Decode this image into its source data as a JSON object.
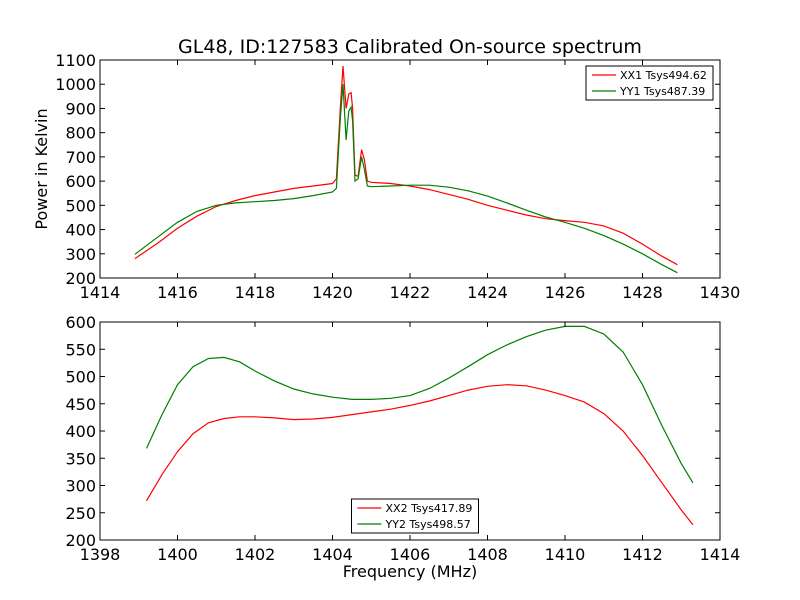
{
  "figure": {
    "title": "GL48, ID:127583 Calibrated On-source spectrum",
    "top_ylabel": "Power in Kelvin",
    "bottom_xlabel": "Frequency (MHz)"
  },
  "chart_data": [
    {
      "type": "line",
      "title": "GL48, ID:127583 Calibrated On-source spectrum",
      "xlabel": "",
      "ylabel": "Power in Kelvin",
      "xlim": [
        1414,
        1430
      ],
      "ylim": [
        200,
        1100
      ],
      "xticks": [
        1414,
        1416,
        1418,
        1420,
        1422,
        1424,
        1426,
        1428,
        1430
      ],
      "yticks": [
        200,
        300,
        400,
        500,
        600,
        700,
        800,
        900,
        1000,
        1100
      ],
      "grid": false,
      "legend": "top-right",
      "series": [
        {
          "name": "XX1 Tsys494.62",
          "color": "#ff0000",
          "x": [
            1414.9,
            1415.5,
            1416,
            1416.5,
            1417,
            1417.5,
            1418,
            1418.5,
            1419,
            1419.5,
            1420,
            1420.1,
            1420.2,
            1420.27,
            1420.35,
            1420.42,
            1420.48,
            1420.52,
            1420.58,
            1420.66,
            1420.75,
            1420.82,
            1420.9,
            1421,
            1421.5,
            1422,
            1422.5,
            1423,
            1423.5,
            1424,
            1424.5,
            1425,
            1425.5,
            1426,
            1426.5,
            1427,
            1427.5,
            1428,
            1428.5,
            1428.9
          ],
          "y": [
            280,
            345,
            405,
            455,
            495,
            520,
            540,
            555,
            570,
            580,
            590,
            610,
            900,
            1075,
            900,
            960,
            965,
            900,
            625,
            620,
            730,
            690,
            600,
            595,
            590,
            580,
            565,
            545,
            525,
            500,
            480,
            460,
            445,
            437,
            430,
            415,
            385,
            340,
            290,
            255
          ]
        },
        {
          "name": "YY1 Tsys487.39",
          "color": "#008000",
          "x": [
            1414.9,
            1415.5,
            1416,
            1416.5,
            1417,
            1417.5,
            1418,
            1418.5,
            1419,
            1419.5,
            1420,
            1420.1,
            1420.2,
            1420.27,
            1420.35,
            1420.42,
            1420.48,
            1420.52,
            1420.58,
            1420.66,
            1420.75,
            1420.82,
            1420.9,
            1421,
            1421.5,
            1422,
            1422.5,
            1423,
            1423.5,
            1424,
            1424.5,
            1425,
            1425.5,
            1426,
            1426.5,
            1427,
            1427.5,
            1428,
            1428.5,
            1428.9
          ],
          "y": [
            298,
            370,
            430,
            475,
            500,
            510,
            515,
            520,
            528,
            540,
            555,
            570,
            860,
            1000,
            770,
            890,
            905,
            850,
            600,
            610,
            700,
            650,
            580,
            577,
            580,
            583,
            583,
            575,
            560,
            538,
            510,
            480,
            452,
            430,
            405,
            375,
            340,
            300,
            255,
            222
          ]
        }
      ]
    },
    {
      "type": "line",
      "title": "",
      "xlabel": "Frequency (MHz)",
      "ylabel": "",
      "xlim": [
        1398,
        1414
      ],
      "ylim": [
        200,
        600
      ],
      "xticks": [
        1398,
        1400,
        1402,
        1404,
        1406,
        1408,
        1410,
        1412,
        1414
      ],
      "yticks": [
        200,
        250,
        300,
        350,
        400,
        450,
        500,
        550,
        600
      ],
      "grid": false,
      "legend": "bottom-center",
      "series": [
        {
          "name": "XX2 Tsys417.89",
          "color": "#ff0000",
          "x": [
            1399.2,
            1399.6,
            1400,
            1400.4,
            1400.8,
            1401.2,
            1401.6,
            1402,
            1402.5,
            1403,
            1403.5,
            1404,
            1404.5,
            1405,
            1405.5,
            1406,
            1406.5,
            1407,
            1407.5,
            1408,
            1408.5,
            1409,
            1409.5,
            1410,
            1410.5,
            1411,
            1411.5,
            1412,
            1412.5,
            1413,
            1413.3
          ],
          "y": [
            272,
            320,
            362,
            395,
            415,
            423,
            426,
            426,
            424,
            421,
            422,
            425,
            430,
            435,
            440,
            447,
            455,
            465,
            475,
            482,
            485,
            483,
            475,
            465,
            453,
            432,
            400,
            355,
            305,
            255,
            228
          ]
        },
        {
          "name": "YY2 Tsys498.57",
          "color": "#008000",
          "x": [
            1399.2,
            1399.6,
            1400,
            1400.4,
            1400.8,
            1401.2,
            1401.6,
            1402,
            1402.5,
            1403,
            1403.5,
            1404,
            1404.5,
            1405,
            1405.5,
            1406,
            1406.5,
            1407,
            1407.5,
            1408,
            1408.5,
            1409,
            1409.5,
            1410,
            1410.5,
            1411,
            1411.5,
            1412,
            1412.5,
            1413,
            1413.3
          ],
          "y": [
            368,
            430,
            485,
            518,
            533,
            535,
            527,
            510,
            492,
            477,
            468,
            462,
            458,
            458,
            460,
            465,
            478,
            497,
            518,
            540,
            558,
            573,
            585,
            592,
            592,
            578,
            545,
            485,
            410,
            340,
            305
          ]
        }
      ]
    }
  ]
}
